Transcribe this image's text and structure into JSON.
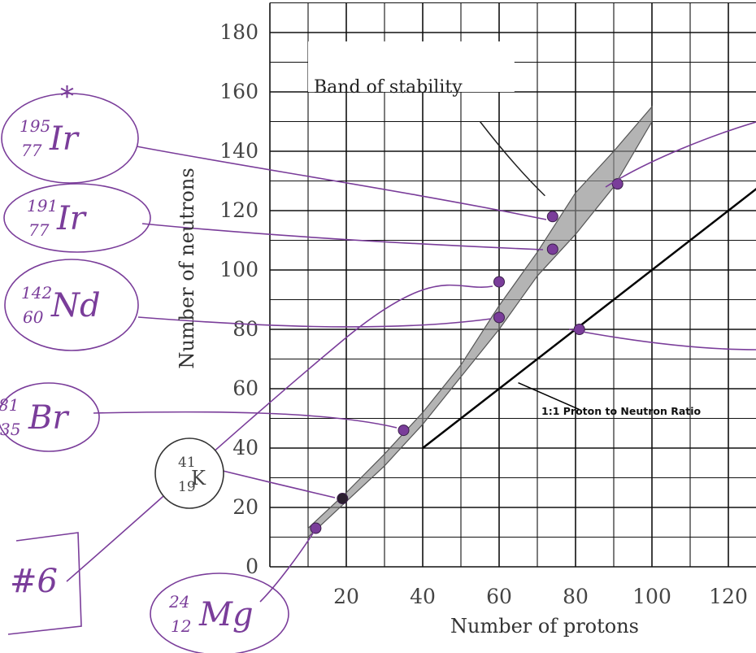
{
  "chart_data": {
    "type": "scatter",
    "xlabel": "Number of protons",
    "ylabel": "Number of neutrons",
    "xlim": [
      0,
      130
    ],
    "ylim": [
      0,
      190
    ],
    "xticks": [
      20,
      40,
      60,
      80,
      100,
      120
    ],
    "yticks": [
      0,
      20,
      40,
      60,
      80,
      100,
      120,
      140,
      160,
      180
    ],
    "grid": true,
    "annotations": {
      "band": "Band of stability",
      "ratio": "1:1 Proton to Neutron Ratio"
    },
    "reference_line": {
      "x": [
        40,
        130
      ],
      "y": [
        40,
        130
      ]
    },
    "band_of_stability": {
      "upper": [
        [
          10,
          13
        ],
        [
          20,
          25
        ],
        [
          30,
          38
        ],
        [
          40,
          52
        ],
        [
          50,
          68
        ],
        [
          60,
          88
        ],
        [
          70,
          106
        ],
        [
          80,
          126
        ],
        [
          90,
          140
        ],
        [
          100,
          155
        ]
      ],
      "lower": [
        [
          100,
          150
        ],
        [
          90,
          128
        ],
        [
          80,
          112
        ],
        [
          70,
          98
        ],
        [
          60,
          80
        ],
        [
          50,
          64
        ],
        [
          40,
          48
        ],
        [
          30,
          34
        ],
        [
          20,
          22
        ],
        [
          10,
          10
        ]
      ]
    },
    "points": [
      {
        "x": 12,
        "y": 13,
        "color": "#7a3d9a"
      },
      {
        "x": 19,
        "y": 23,
        "color": "#2a1f2e"
      },
      {
        "x": 35,
        "y": 46,
        "color": "#7a3d9a"
      },
      {
        "x": 60,
        "y": 84,
        "color": "#7a3d9a"
      },
      {
        "x": 60,
        "y": 96,
        "color": "#7a3d9a"
      },
      {
        "x": 74,
        "y": 118,
        "color": "#7a3d9a"
      },
      {
        "x": 74,
        "y": 107,
        "color": "#7a3d9a"
      },
      {
        "x": 81,
        "y": 80,
        "color": "#7a3d9a"
      },
      {
        "x": 91,
        "y": 129,
        "color": "#7a3d9a"
      }
    ],
    "handwritten_labels": [
      {
        "mass": "195",
        "atomic": "77",
        "symbol": "Ir",
        "mark": "*"
      },
      {
        "mass": "191",
        "atomic": "77",
        "symbol": "Ir"
      },
      {
        "mass": "142",
        "atomic": "60",
        "symbol": "Nd"
      },
      {
        "mass": "81",
        "atomic": "35",
        "symbol": "Br"
      },
      {
        "mass": "41",
        "atomic": "19",
        "symbol": "K"
      },
      {
        "mass": "24",
        "atomic": "12",
        "symbol": "Mg"
      },
      {
        "symbol": "#6"
      }
    ]
  },
  "colors": {
    "ink": "#7a3d9a",
    "grid": "#111111",
    "band": "#8c8c8c",
    "paper": "#ffffff"
  }
}
